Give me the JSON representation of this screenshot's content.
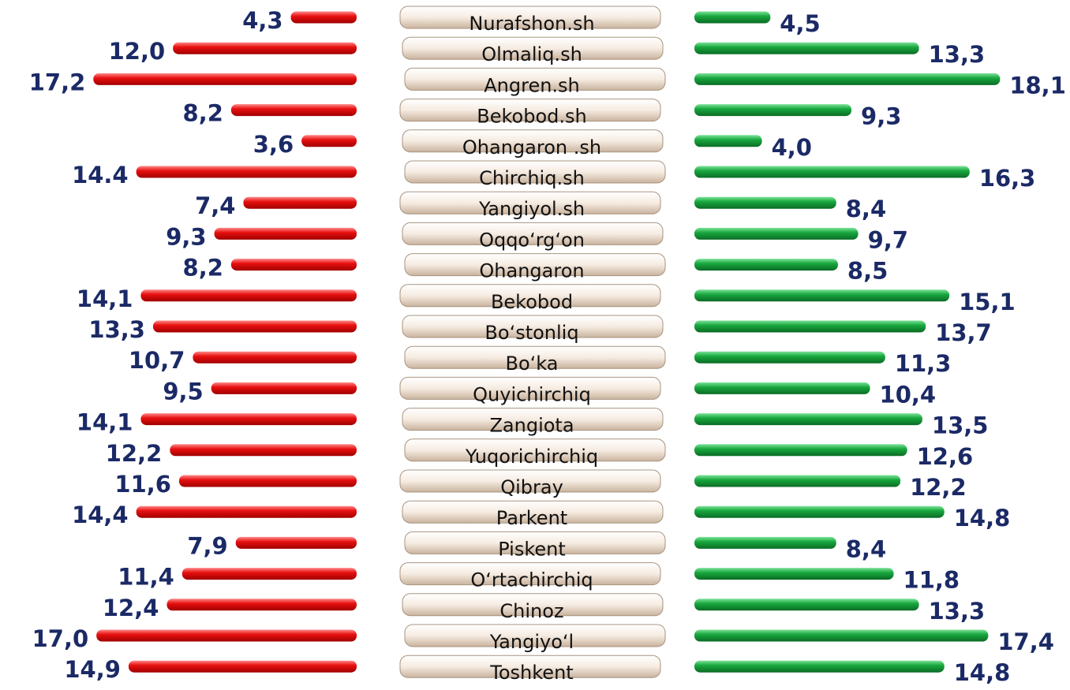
{
  "chart_data": {
    "type": "butterfly-bar",
    "categories": [
      "Nurafshon.sh",
      "Olmaliq.sh",
      "Angren.sh",
      "Bekobod.sh",
      "Ohangaron .sh",
      "Chirchiq.sh",
      "Yangiyol.sh",
      "Oqqo‘rg‘on",
      "Ohangaron",
      "Bekobod",
      "Bo‘stonliq",
      "Bo‘ka",
      "Quyichirchiq",
      "Zangiota",
      "Yuqorichirchiq",
      "Qibray",
      "Parkent",
      "Piskent",
      "O‘rtachirchiq",
      "Chinoz",
      "Yangiyo‘l",
      "Toshkent"
    ],
    "series": [
      {
        "color": "#e01010",
        "values": [
          4.3,
          12.0,
          17.2,
          8.2,
          3.6,
          14.4,
          7.4,
          9.3,
          8.2,
          14.1,
          13.3,
          10.7,
          9.5,
          14.1,
          12.2,
          11.6,
          14.4,
          7.9,
          11.4,
          12.4,
          17.0,
          14.9
        ],
        "value_labels": [
          "4,3",
          "12,0",
          "17,2",
          "8,2",
          "3,6",
          "14.4",
          "7,4",
          "9,3",
          "8,2",
          "14,1",
          "13,3",
          "10,7",
          "9,5",
          "14,1",
          "12,2",
          "11,6",
          "14,4",
          "7,9",
          "11,4",
          "12,4",
          "17,0",
          "14,9"
        ]
      },
      {
        "color": "#16a53c",
        "values": [
          4.5,
          13.3,
          18.1,
          9.3,
          4.0,
          16.3,
          8.4,
          9.7,
          8.5,
          15.1,
          13.7,
          11.3,
          10.4,
          13.5,
          12.6,
          12.2,
          14.8,
          8.4,
          11.8,
          13.3,
          17.4,
          14.8
        ],
        "value_labels": [
          "4,5",
          "13,3",
          "18,1",
          "9,3",
          "4,0",
          "16,3",
          "8,4",
          "9,7",
          "8,5",
          "15,1",
          "13,7",
          "11,3",
          "10,4",
          "13,5",
          "12,6",
          "12,2",
          "14,8",
          "8,4",
          "11,8",
          "13,3",
          "17,4",
          "14,8"
        ]
      }
    ]
  }
}
